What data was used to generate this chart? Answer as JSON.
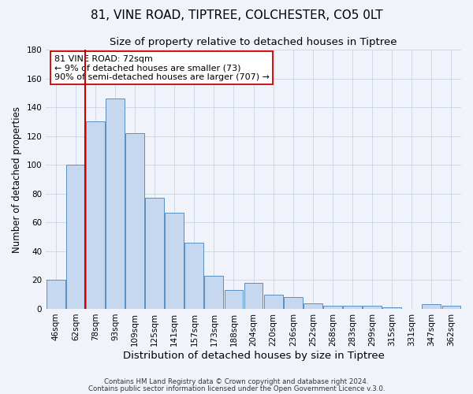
{
  "title": "81, VINE ROAD, TIPTREE, COLCHESTER, CO5 0LT",
  "subtitle": "Size of property relative to detached houses in Tiptree",
  "xlabel": "Distribution of detached houses by size in Tiptree",
  "ylabel": "Number of detached properties",
  "categories": [
    "46sqm",
    "62sqm",
    "78sqm",
    "93sqm",
    "109sqm",
    "125sqm",
    "141sqm",
    "157sqm",
    "173sqm",
    "188sqm",
    "204sqm",
    "220sqm",
    "236sqm",
    "252sqm",
    "268sqm",
    "283sqm",
    "299sqm",
    "315sqm",
    "331sqm",
    "347sqm",
    "362sqm"
  ],
  "values": [
    20,
    100,
    130,
    146,
    122,
    77,
    67,
    46,
    23,
    13,
    18,
    10,
    8,
    4,
    2,
    2,
    2,
    1,
    0,
    3,
    2
  ],
  "bar_color": "#c5d8f0",
  "bar_edge_color": "#5a8fc2",
  "ylim": [
    0,
    180
  ],
  "yticks": [
    0,
    20,
    40,
    60,
    80,
    100,
    120,
    140,
    160,
    180
  ],
  "vline_color": "#cc0000",
  "annotation_line1": "81 VINE ROAD: 72sqm",
  "annotation_line2": "← 9% of detached houses are smaller (73)",
  "annotation_line3": "90% of semi-detached houses are larger (707) →",
  "annotation_box_color": "#ffffff",
  "annotation_border_color": "#cc0000",
  "footer1": "Contains HM Land Registry data © Crown copyright and database right 2024.",
  "footer2": "Contains public sector information licensed under the Open Government Licence v.3.0.",
  "background_color": "#f0f4fa",
  "grid_color": "#c8d4e8",
  "title_fontsize": 11,
  "subtitle_fontsize": 9.5,
  "xlabel_fontsize": 9.5,
  "ylabel_fontsize": 8.5,
  "tick_fontsize": 7.5,
  "annotation_fontsize": 8
}
